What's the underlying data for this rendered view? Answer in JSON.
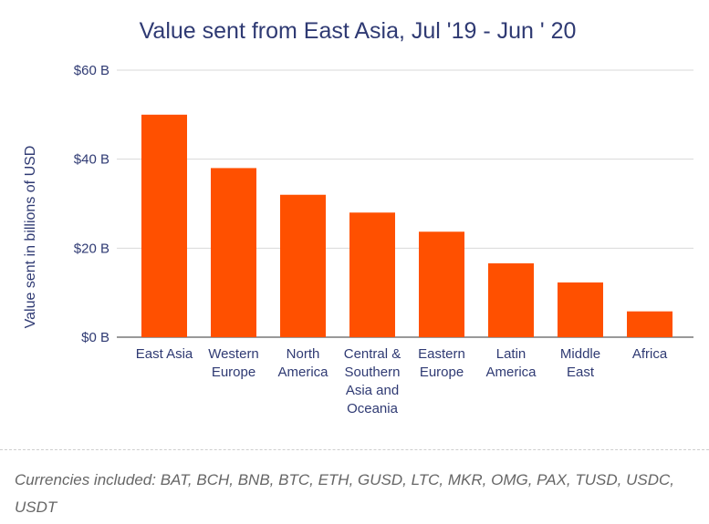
{
  "chart_data": {
    "type": "bar",
    "title": "Value sent from East Asia, Jul '19 - Jun ' 20",
    "xlabel": "",
    "ylabel": "Value sent in billions of USD",
    "ylim": [
      0,
      60
    ],
    "yticks": [
      0,
      20,
      40,
      60
    ],
    "ytick_labels": [
      "$0 B",
      "$20 B",
      "$40 B",
      "$60 B"
    ],
    "categories": [
      "East Asia",
      "Western Europe",
      "North America",
      "Central & Southern Asia and Oceania",
      "Eastern Europe",
      "Latin America",
      "Middle East",
      "Africa"
    ],
    "category_label_lines": [
      [
        "East Asia"
      ],
      [
        "Western",
        "Europe"
      ],
      [
        "North",
        "America"
      ],
      [
        "Central &",
        "Southern",
        "Asia and",
        "Oceania"
      ],
      [
        "Eastern",
        "Europe"
      ],
      [
        "Latin",
        "America"
      ],
      [
        "Middle",
        "East"
      ],
      [
        "Africa"
      ]
    ],
    "values": [
      50,
      38,
      32,
      28,
      23.7,
      16.6,
      12.3,
      5.8
    ],
    "bar_color": "#ff5000",
    "grid": true,
    "legend": "none"
  },
  "footnote": "Currencies included: BAT, BCH, BNB, BTC, ETH, GUSD, LTC, MKR, OMG, PAX, TUSD, USDC, USDT"
}
